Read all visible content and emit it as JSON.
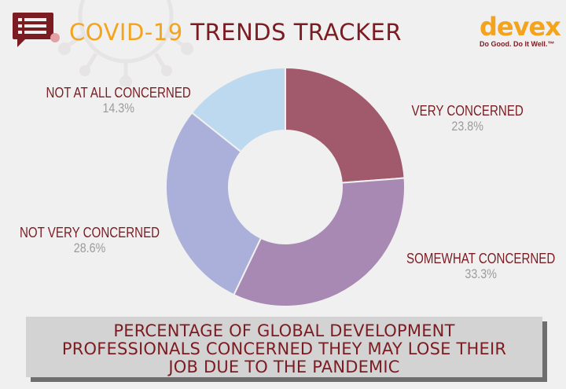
{
  "header": {
    "title_part1": "COVID-19",
    "title_part2": "TRENDS TRACKER",
    "icon": "report-icon"
  },
  "logo": {
    "word": "devex",
    "tagline": "Do Good. Do It Well.™"
  },
  "background": {
    "icon": "virus-icon"
  },
  "chart_data": {
    "type": "pie",
    "donut": true,
    "slices": [
      {
        "label": "VERY CONCERNED",
        "value": 23.8,
        "display": "23.8%",
        "color": "#a05a6c"
      },
      {
        "label": "SOMEWHAT CONCERNED",
        "value": 33.3,
        "display": "33.3%",
        "color": "#a889b3"
      },
      {
        "label": "NOT VERY CONCERNED",
        "value": 28.6,
        "display": "28.6%",
        "color": "#aab0d9"
      },
      {
        "label": "NOT AT ALL CONCERNED",
        "value": 14.3,
        "display": "14.3%",
        "color": "#bdd9ef"
      }
    ],
    "title": "PERCENTAGE OF GLOBAL DEVELOPMENT PROFESSIONALS CONCERNED THEY MAY LOSE THEIR JOB DUE TO THE PANDEMIC",
    "legend": "none"
  },
  "caption": {
    "line1": "PERCENTAGE OF GLOBAL DEVELOPMENT",
    "line2": "PROFESSIONALS CONCERNED THEY MAY LOSE THEIR",
    "line3": "JOB DUE TO THE PANDEMIC"
  }
}
